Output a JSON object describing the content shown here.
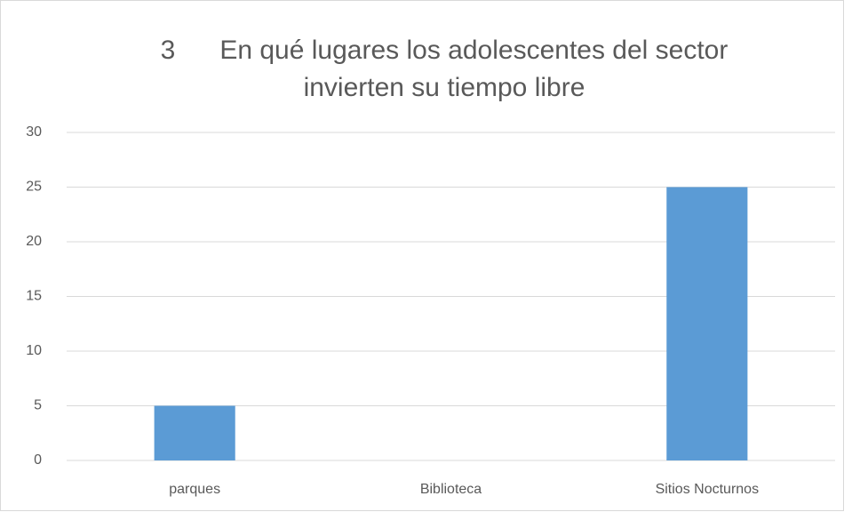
{
  "chart_data": {
    "type": "bar",
    "title": [
      "3      En qué lugares los adolescentes del sector",
      "invierten su tiempo libre"
    ],
    "categories": [
      "parques",
      "Biblioteca",
      "Sitios Nocturnos"
    ],
    "values": [
      5,
      0,
      25
    ],
    "color": "#5b9bd5",
    "ylim": [
      0,
      30
    ],
    "yticks": [
      0,
      5,
      10,
      15,
      20,
      25,
      30
    ],
    "grid": true
  }
}
